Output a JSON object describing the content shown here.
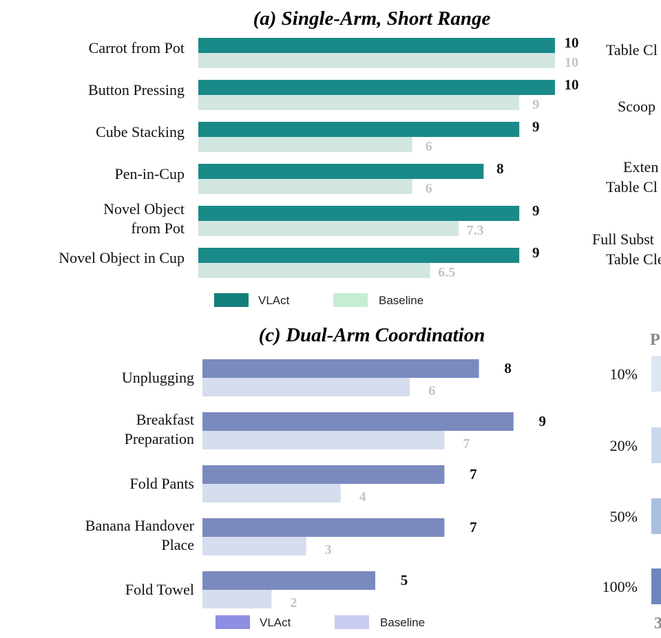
{
  "chart_data": [
    {
      "type": "bar",
      "title": "(a) Single-Arm, Short Range",
      "categories": [
        "Carrot from Pot",
        "Button Pressing",
        "Cube Stacking",
        "Pen-in-Cup",
        "Novel Object from Pot",
        "Novel Object in Cup"
      ],
      "category_lines": [
        [
          "Carrot from Pot"
        ],
        [
          "Button Pressing"
        ],
        [
          "Cube Stacking"
        ],
        [
          "Pen-in-Cup"
        ],
        [
          "Novel Object",
          "from Pot"
        ],
        [
          "Novel Object in Cup"
        ]
      ],
      "series": [
        {
          "name": "VLAct",
          "values": [
            10,
            10,
            9,
            8,
            9,
            9
          ],
          "labels": [
            "10",
            "10",
            "9",
            "8",
            "9",
            "9"
          ],
          "color": "#1a8a88"
        },
        {
          "name": "Baseline",
          "values": [
            10,
            9,
            6,
            6,
            7.3,
            6.5
          ],
          "labels": [
            "10",
            "9",
            "6",
            "6",
            "7.3",
            "6.5"
          ],
          "color": "#d2e6e1"
        }
      ],
      "legend_colors": [
        "#137f7b",
        "#c6edd3"
      ],
      "xlim": [
        0,
        10
      ],
      "legend_position": "bottom"
    },
    {
      "type": "bar",
      "title": "(c) Dual-Arm Coordination",
      "categories": [
        "Unplugging",
        "Breakfast Preparation",
        "Fold Pants",
        "Banana Handover Place",
        "Fold Towel"
      ],
      "category_lines": [
        [
          "Unplugging"
        ],
        [
          "Breakfast",
          "Preparation"
        ],
        [
          "Fold Pants"
        ],
        [
          "Banana Handover",
          "Place"
        ],
        [
          "Fold Towel"
        ]
      ],
      "series": [
        {
          "name": "VLAct",
          "values": [
            8,
            9,
            7,
            7,
            5
          ],
          "labels": [
            "8",
            "9",
            "7",
            "7",
            "5"
          ],
          "color": "#7a8abf"
        },
        {
          "name": "Baseline",
          "values": [
            6,
            7,
            4,
            3,
            2
          ],
          "labels": [
            "6",
            "7",
            "4",
            "3",
            "2"
          ],
          "color": "#d5ddee"
        }
      ],
      "legend_colors": [
        "#8e8fe3",
        "#c9cbf0"
      ],
      "xlim": [
        0,
        10
      ],
      "legend_position": "bottom"
    }
  ],
  "cropped_panel": {
    "top_labels": [
      [
        "Table Cl"
      ],
      [
        "Scoop"
      ],
      [
        "Exten",
        "Table Cl"
      ],
      [
        "Full Subst",
        "Table Cle"
      ]
    ],
    "heading": "P",
    "percent_labels": [
      "10%",
      "20%",
      "50%",
      "100%"
    ],
    "percent_bar_colors": [
      "#dde7f4",
      "#c8d8ec",
      "#a9bfe0",
      "#6d86be"
    ],
    "bottom_glyph": "3"
  }
}
